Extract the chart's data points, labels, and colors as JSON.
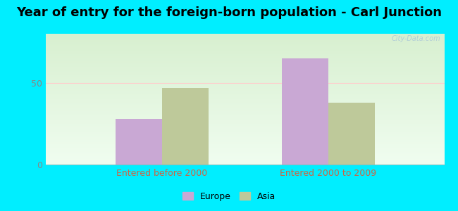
{
  "title": "Year of entry for the foreign-born population - Carl Junction",
  "categories": [
    "Entered before 2000",
    "Entered 2000 to 2009"
  ],
  "europe_values": [
    28,
    65
  ],
  "asia_values": [
    47,
    38
  ],
  "europe_color": "#c9a8d4",
  "asia_color": "#bec99a",
  "background_outer": "#00eeff",
  "yticks": [
    0,
    50
  ],
  "ylim_max": 80,
  "bar_width": 0.28,
  "title_fontsize": 13,
  "tick_fontsize": 9,
  "xtick_color": "#cc6644",
  "ytick_color": "#888888",
  "legend_labels": [
    "Europe",
    "Asia"
  ],
  "watermark": "City-Data.com",
  "gradient_top": "#f0fdf0",
  "gradient_bottom": "#d8f0d0"
}
